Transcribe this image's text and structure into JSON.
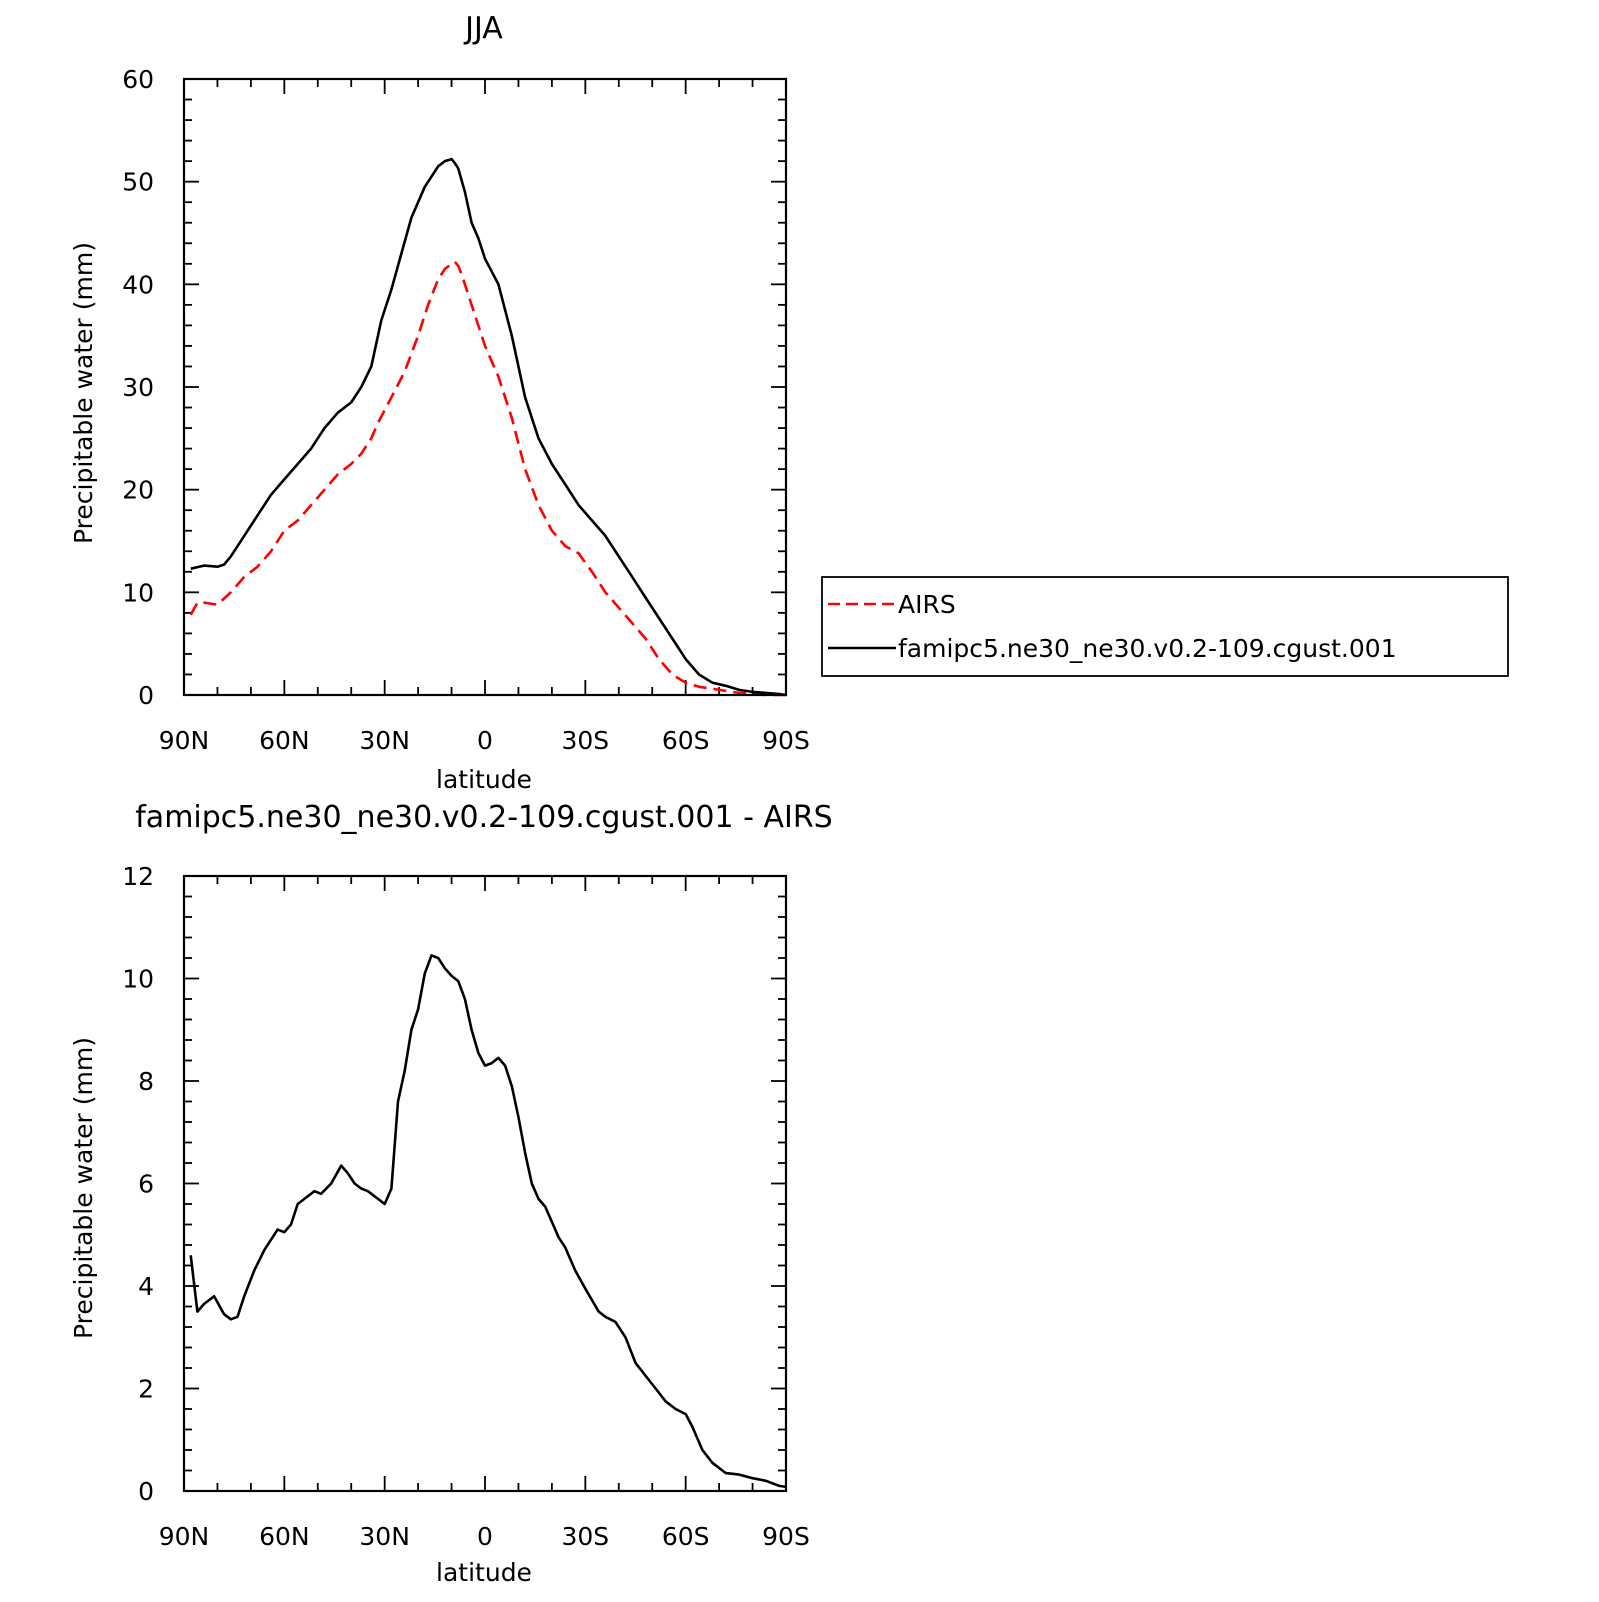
{
  "colors": {
    "airs": "#ff0000",
    "model": "#000000",
    "axis": "#000000"
  },
  "chart_data": [
    {
      "type": "line",
      "title": "JJA",
      "xlabel": "latitude",
      "ylabel": "Precipitable water (mm)",
      "xlim": [
        90,
        -90
      ],
      "ylim": [
        0,
        60
      ],
      "yticks": [
        0,
        10,
        20,
        30,
        40,
        50,
        60
      ],
      "xticks": [
        {
          "value": 90,
          "label": "90N"
        },
        {
          "value": 60,
          "label": "60N"
        },
        {
          "value": 30,
          "label": "30N"
        },
        {
          "value": 0,
          "label": "0"
        },
        {
          "value": -30,
          "label": "30S"
        },
        {
          "value": -60,
          "label": "60S"
        },
        {
          "value": -90,
          "label": "90S"
        }
      ],
      "legend": {
        "position": "right",
        "entries": [
          "AIRS",
          "famipc5.ne30_ne30.v0.2-109.cgust.001"
        ]
      },
      "series": [
        {
          "name": "AIRS",
          "style": "dashed",
          "color": "#ff0000",
          "x": [
            88,
            86,
            84,
            80,
            76,
            72,
            68,
            64,
            60,
            56,
            52,
            48,
            44,
            40,
            37,
            34,
            32,
            28,
            24,
            20,
            17,
            14,
            12,
            10,
            9,
            8,
            7,
            6,
            5,
            4,
            2,
            0,
            -4,
            -8,
            -12,
            -16,
            -20,
            -24,
            -28,
            -32,
            -36,
            -40,
            -44,
            -48,
            -52,
            -56,
            -60,
            -64,
            -68,
            -72,
            -76,
            -80,
            -84,
            -88,
            -90
          ],
          "values": [
            7.8,
            9.0,
            9.0,
            8.8,
            10.0,
            11.5,
            12.5,
            14.0,
            16.0,
            17.0,
            18.5,
            20.0,
            21.5,
            22.5,
            23.5,
            25.0,
            26.5,
            29.0,
            31.5,
            35.0,
            38.0,
            40.5,
            41.5,
            42.0,
            42.2,
            41.8,
            41.0,
            40.0,
            39.0,
            38.0,
            36.0,
            34.0,
            31.0,
            27.0,
            22.0,
            18.5,
            16.0,
            14.5,
            13.8,
            12.0,
            10.0,
            8.5,
            7.0,
            5.5,
            3.5,
            2.0,
            1.2,
            0.8,
            0.6,
            0.4,
            0.2,
            0.1,
            0.0,
            0.0,
            0.0
          ]
        },
        {
          "name": "famipc5.ne30_ne30.v0.2-109.cgust.001",
          "style": "solid",
          "color": "#000000",
          "x": [
            88,
            84,
            80,
            78,
            76,
            72,
            68,
            64,
            60,
            56,
            52,
            48,
            44,
            40,
            37,
            34,
            31,
            28,
            25,
            22,
            18,
            14,
            12,
            10,
            9,
            8,
            6,
            4,
            2,
            0,
            -4,
            -8,
            -12,
            -16,
            -20,
            -24,
            -28,
            -32,
            -36,
            -40,
            -44,
            -48,
            -52,
            -56,
            -60,
            -64,
            -68,
            -72,
            -76,
            -80,
            -84,
            -88,
            -90
          ],
          "values": [
            12.3,
            12.6,
            12.5,
            12.7,
            13.5,
            15.5,
            17.5,
            19.5,
            21.0,
            22.5,
            24.0,
            26.0,
            27.5,
            28.5,
            30.0,
            32.0,
            36.5,
            39.5,
            43.0,
            46.5,
            49.5,
            51.5,
            52.0,
            52.2,
            51.8,
            51.3,
            49.0,
            46.0,
            44.5,
            42.5,
            40.0,
            35.0,
            29.0,
            25.0,
            22.5,
            20.5,
            18.5,
            17.0,
            15.5,
            13.5,
            11.5,
            9.5,
            7.5,
            5.5,
            3.5,
            2.0,
            1.2,
            0.9,
            0.5,
            0.3,
            0.2,
            0.1,
            0.0
          ]
        }
      ]
    },
    {
      "type": "line",
      "title": "famipc5.ne30_ne30.v0.2-109.cgust.001  -  AIRS",
      "xlabel": "latitude",
      "ylabel": "Precipitable water (mm)",
      "xlim": [
        90,
        -90
      ],
      "ylim": [
        0,
        12
      ],
      "yticks": [
        0,
        2,
        4,
        6,
        8,
        10,
        12
      ],
      "xticks": [
        {
          "value": 90,
          "label": "90N"
        },
        {
          "value": 60,
          "label": "60N"
        },
        {
          "value": 30,
          "label": "30N"
        },
        {
          "value": 0,
          "label": "0"
        },
        {
          "value": -30,
          "label": "30S"
        },
        {
          "value": -60,
          "label": "60S"
        },
        {
          "value": -90,
          "label": "90S"
        }
      ],
      "series": [
        {
          "name": "famipc5.ne30_ne30.v0.2-109.cgust.001 - AIRS",
          "style": "solid",
          "color": "#000000",
          "x": [
            88,
            86,
            84,
            81,
            78,
            76,
            74,
            72,
            69,
            66,
            62,
            60,
            58,
            56,
            54,
            51,
            49,
            46,
            43,
            41,
            39,
            37,
            35,
            32,
            30,
            28,
            26,
            24,
            22,
            20,
            18,
            16,
            14,
            12,
            10,
            8,
            6,
            4,
            2,
            0,
            -2,
            -4,
            -6,
            -8,
            -10,
            -12,
            -14,
            -16,
            -18,
            -20,
            -22,
            -24,
            -27,
            -30,
            -34,
            -36,
            -39,
            -42,
            -45,
            -48,
            -51,
            -54,
            -57,
            -60,
            -62,
            -65,
            -68,
            -72,
            -76,
            -80,
            -84,
            -88,
            -90
          ],
          "values": [
            4.6,
            3.5,
            3.65,
            3.8,
            3.45,
            3.35,
            3.4,
            3.8,
            4.3,
            4.7,
            5.1,
            5.05,
            5.2,
            5.6,
            5.7,
            5.85,
            5.8,
            6.0,
            6.35,
            6.2,
            6.0,
            5.9,
            5.85,
            5.7,
            5.6,
            5.9,
            7.6,
            8.2,
            9.0,
            9.4,
            10.1,
            10.45,
            10.4,
            10.2,
            10.05,
            9.95,
            9.6,
            9.0,
            8.55,
            8.3,
            8.35,
            8.45,
            8.3,
            7.9,
            7.3,
            6.6,
            6.0,
            5.7,
            5.55,
            5.25,
            4.95,
            4.75,
            4.3,
            3.95,
            3.5,
            3.4,
            3.3,
            3.0,
            2.5,
            2.25,
            2.0,
            1.75,
            1.6,
            1.5,
            1.25,
            0.8,
            0.55,
            0.35,
            0.32,
            0.25,
            0.2,
            0.1,
            0.08
          ]
        }
      ]
    }
  ]
}
